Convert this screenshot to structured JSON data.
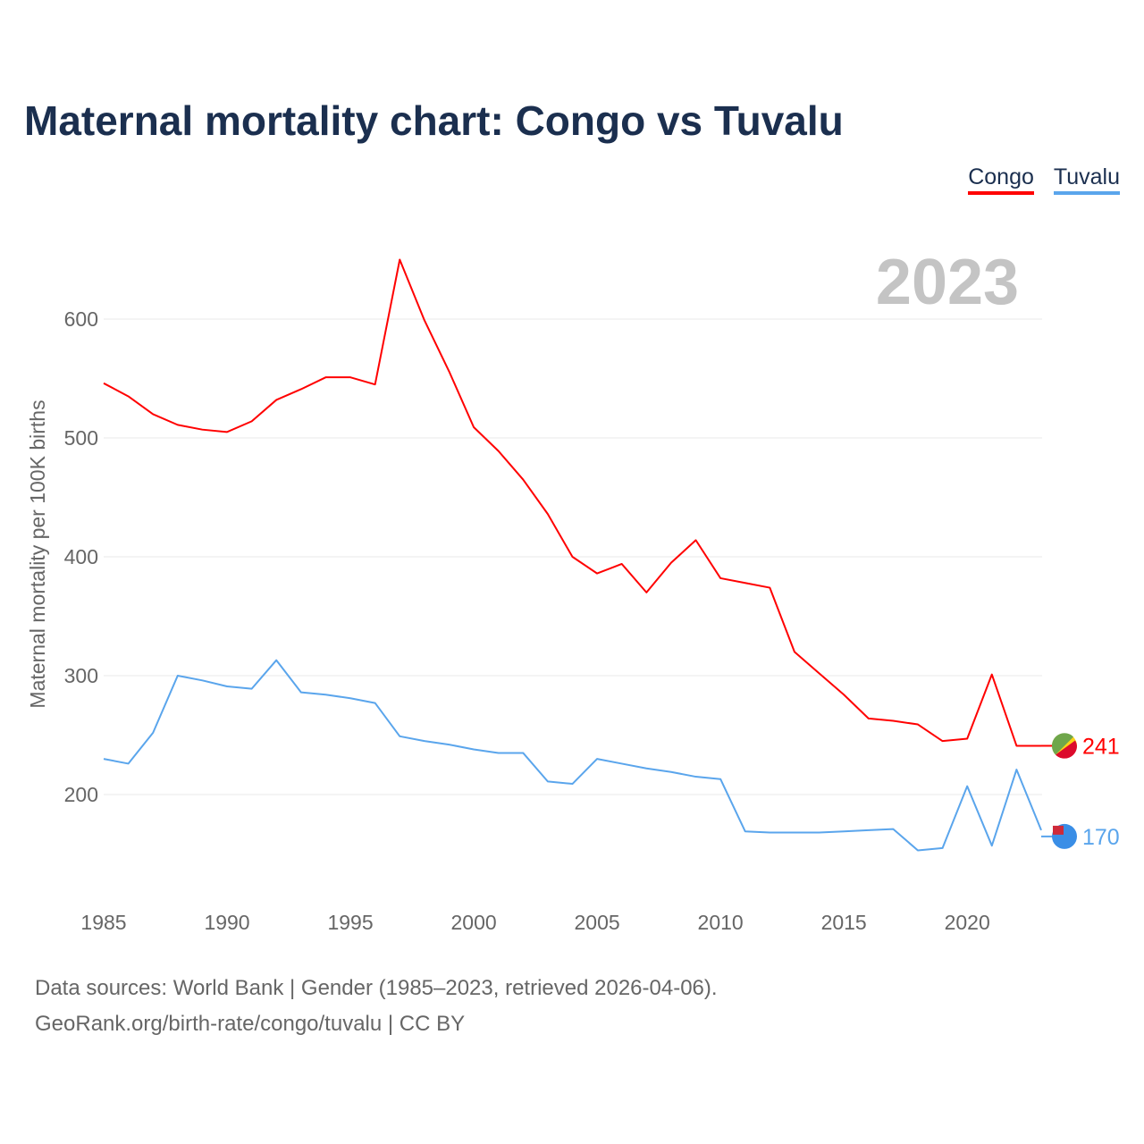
{
  "title": "Maternal mortality chart: Congo vs Tuvalu",
  "footer": {
    "line1": "Data sources: World Bank | Gender (1985–2023, retrieved 2026-04-06).",
    "line2": "GeoRank.org/birth-rate/congo/tuvalu | CC BY"
  },
  "chart_data": {
    "type": "line",
    "title": "Maternal mortality chart: Congo vs Tuvalu",
    "year_label": "2023",
    "xlabel": "",
    "ylabel": "Maternal mortality per 100K births",
    "xlim": [
      1985,
      2023
    ],
    "ylim": [
      130,
      670
    ],
    "grid": true,
    "legend_position": "top-right",
    "x_ticks": [
      1985,
      1990,
      1995,
      2000,
      2005,
      2010,
      2015,
      2020
    ],
    "y_ticks": [
      200,
      300,
      400,
      500,
      600
    ],
    "x": [
      1985,
      1986,
      1987,
      1988,
      1989,
      1990,
      1991,
      1992,
      1993,
      1994,
      1995,
      1996,
      1997,
      1998,
      1999,
      2000,
      2001,
      2002,
      2003,
      2004,
      2005,
      2006,
      2007,
      2008,
      2009,
      2010,
      2011,
      2012,
      2013,
      2014,
      2015,
      2016,
      2017,
      2018,
      2019,
      2020,
      2021,
      2022,
      2023
    ],
    "series": [
      {
        "name": "Congo",
        "color": "#ff0000",
        "end_label": "241",
        "values": [
          546,
          535,
          520,
          511,
          507,
          505,
          514,
          532,
          541,
          551,
          551,
          545,
          650,
          599,
          556,
          509,
          489,
          465,
          436,
          400,
          386,
          394,
          370,
          395,
          414,
          382,
          378,
          374,
          320,
          302,
          284,
          264,
          262,
          259,
          245,
          247,
          301,
          241,
          241
        ]
      },
      {
        "name": "Tuvalu",
        "color": "#5aa5ec",
        "end_label": "170",
        "values": [
          230,
          226,
          252,
          300,
          296,
          291,
          289,
          313,
          286,
          284,
          281,
          277,
          249,
          245,
          242,
          238,
          235,
          235,
          211,
          209,
          230,
          226,
          222,
          219,
          215,
          213,
          169,
          168,
          168,
          168,
          169,
          170,
          171,
          153,
          155,
          207,
          157,
          221,
          170
        ]
      }
    ]
  }
}
